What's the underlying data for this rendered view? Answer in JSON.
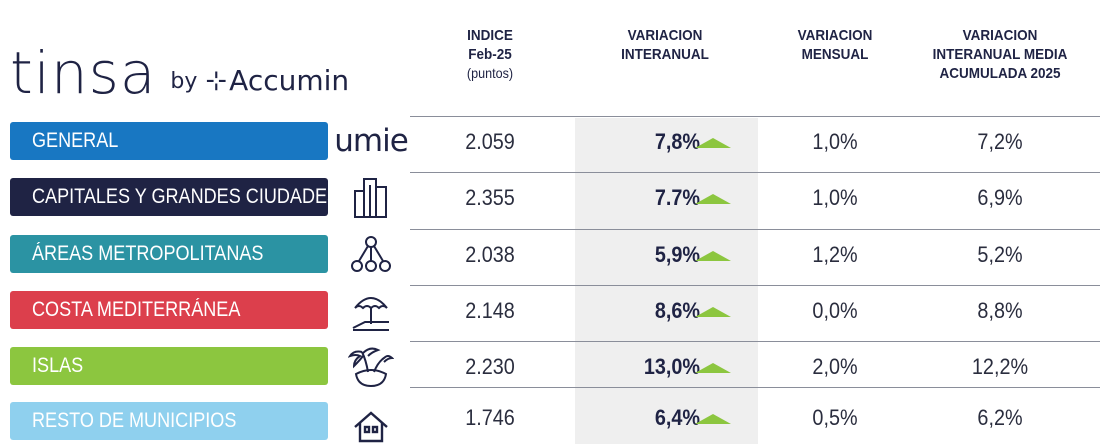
{
  "logo": {
    "brand": "tinsa",
    "by": "by",
    "partner": "Accumin"
  },
  "headers": {
    "indice": {
      "title": "INDICE",
      "date": "Feb-25",
      "unit": "(puntos)"
    },
    "interanual": {
      "line1": "VARIACION",
      "line2": "INTERANUAL"
    },
    "mensual": {
      "line1": "VARIACION",
      "line2": "MENSUAL"
    },
    "media": {
      "line1": "VARIACION",
      "line2": "INTERANUAL MEDIA",
      "line3": "ACUMULADA 2025"
    }
  },
  "rows": [
    {
      "label": "GENERAL",
      "color": "#1877c2",
      "icon": "umie-text-icon",
      "icon_text": "umie",
      "indice": "2.059",
      "interanual": "7,8%",
      "mensual": "1,0%",
      "media": "7,2%"
    },
    {
      "label": "CAPITALES Y GRANDES CIUDADES",
      "color": "#1f2344",
      "icon": "buildings-icon",
      "indice": "2.355",
      "interanual": "7.7%",
      "mensual": "1,0%",
      "media": "6,9%"
    },
    {
      "label": "ÁREAS METROPOLITANAS",
      "color": "#2b93a3",
      "icon": "network-icon",
      "indice": "2.038",
      "interanual": "5,9%",
      "mensual": "1,2%",
      "media": "5,2%"
    },
    {
      "label": "COSTA MEDITERRÁNEA",
      "color": "#dc3f4c",
      "icon": "beach-umbrella-icon",
      "indice": "2.148",
      "interanual": "8,6%",
      "mensual": "0,0%",
      "media": "8,8%"
    },
    {
      "label": "ISLAS",
      "color": "#8cc63f",
      "icon": "island-icon",
      "indice": "2.230",
      "interanual": "13,0%",
      "mensual": "2,0%",
      "media": "12,2%"
    },
    {
      "label": "RESTO DE MUNICIPIOS",
      "color": "#8fd0ee",
      "icon": "house-icon",
      "indice": "1.746",
      "interanual": "6,4%",
      "mensual": "0,5%",
      "media": "6,2%"
    }
  ],
  "colors": {
    "text": "#1f2344",
    "arrow": "#8cc63f",
    "shade": "#efefef"
  }
}
